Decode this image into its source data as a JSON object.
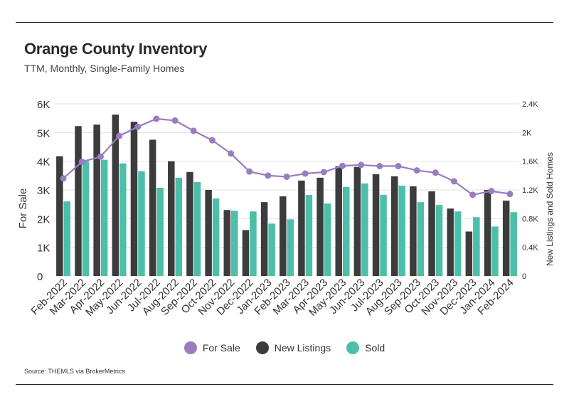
{
  "title": "Orange County Inventory",
  "subtitle": "TTM, Monthly, Single-Family Homes",
  "source": "Source:  THEMLS via BrokerMetrics",
  "colors": {
    "for_sale": "#9b7cc1",
    "new_listings": "#3c3c3c",
    "sold": "#4dbfa8",
    "grid": "#e2e2e2"
  },
  "chart_data": {
    "type": "bar",
    "categories": [
      "Feb-2022",
      "Mar-2022",
      "Apr-2022",
      "May-2022",
      "Jun-2022",
      "Jul-2022",
      "Aug-2022",
      "Sep-2022",
      "Oct-2022",
      "Nov-2022",
      "Dec-2022",
      "Jan-2023",
      "Feb-2023",
      "Mar-2023",
      "Apr-2023",
      "May-2023",
      "Jun-2023",
      "Jul-2023",
      "Aug-2023",
      "Sep-2023",
      "Oct-2023",
      "Nov-2023",
      "Dec-2023",
      "Jan-2024",
      "Feb-2024"
    ],
    "ylabel": "For Sale",
    "y2label": "New Listings and Sold Homes",
    "ylim": [
      0,
      6000
    ],
    "y2lim": [
      0,
      2400
    ],
    "yticks": [
      "0",
      "1K",
      "2K",
      "3K",
      "4K",
      "5K",
      "6K"
    ],
    "y2ticks": [
      "0",
      "0.4K",
      "0.8K",
      "1.2K",
      "1.6K",
      "2K",
      "2.4K"
    ],
    "grid": true,
    "legend_position": "bottom",
    "series": [
      {
        "name": "For Sale",
        "type": "line",
        "axis": "left",
        "values": [
          3400,
          3980,
          4160,
          4880,
          5200,
          5480,
          5420,
          5060,
          4730,
          4270,
          3640,
          3500,
          3460,
          3570,
          3620,
          3840,
          3870,
          3830,
          3830,
          3680,
          3600,
          3300,
          2830,
          2960,
          2860
        ]
      },
      {
        "name": "New Listings",
        "type": "bar",
        "axis": "right",
        "values": [
          1670,
          2090,
          2110,
          2250,
          2150,
          1900,
          1600,
          1450,
          1200,
          920,
          640,
          1030,
          1110,
          1330,
          1370,
          1530,
          1520,
          1420,
          1390,
          1250,
          1180,
          940,
          620,
          1200,
          1050
        ]
      },
      {
        "name": "Sold",
        "type": "bar",
        "axis": "right",
        "values": [
          1040,
          1600,
          1620,
          1570,
          1460,
          1230,
          1370,
          1310,
          1080,
          910,
          900,
          730,
          790,
          1130,
          1010,
          1240,
          1290,
          1130,
          1260,
          1030,
          990,
          900,
          820,
          690,
          890
        ]
      }
    ]
  }
}
